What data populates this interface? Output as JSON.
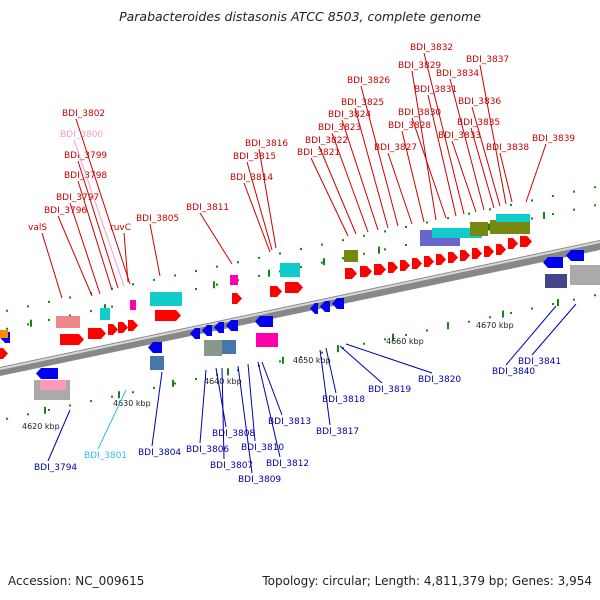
{
  "title": "Parabacteroides distasonis ATCC 8503, complete genome",
  "footer": {
    "accession": "Accession: NC_009615",
    "topology": "Topology: circular; Length: 4,811,379 bp; Genes: 3,954"
  },
  "colors": {
    "forward_gene": "#ff0000",
    "reverse_gene": "#0000ee",
    "upper_label": "#cc0000",
    "lower_label": "#0000aa",
    "pseudo_upper": "#ff99cc",
    "pseudo_lower": "#33bbee",
    "tick": "#118811",
    "backbone": "#888888"
  },
  "scale_labels": [
    "4620 kbp",
    "4630 kbp",
    "4640 kbp",
    "4650 kbp",
    "4660 kbp",
    "4670 kbp"
  ],
  "upper_labels": [
    "valS",
    "BDI_3796",
    "BDI_3797",
    "BDI_3798",
    "BDI_3799",
    "BDI_3800",
    "BDI_3802",
    "ruvC",
    "BDI_3805",
    "BDI_3811",
    "BDI_3814",
    "BDI_3815",
    "BDI_3816",
    "BDI_3821",
    "BDI_3822",
    "BDI_3823",
    "BDI_3824",
    "BDI_3825",
    "BDI_3826",
    "BDI_3827",
    "BDI_3828",
    "BDI_3829",
    "BDI_3830",
    "BDI_3831",
    "BDI_3832",
    "BDI_3833",
    "BDI_3834",
    "BDI_3835",
    "BDI_3836",
    "BDI_3837",
    "BDI_3838",
    "BDI_3839"
  ],
  "lower_labels": [
    "BDI_3794",
    "BDI_3801",
    "BDI_3804",
    "BDI_3806",
    "BDI_3807",
    "BDI_3808",
    "BDI_3809",
    "BDI_3810",
    "BDI_3812",
    "BDI_3813",
    "BDI_3817",
    "BDI_3818",
    "BDI_3819",
    "BDI_3820",
    "BDI_3840",
    "BDI_3841"
  ]
}
